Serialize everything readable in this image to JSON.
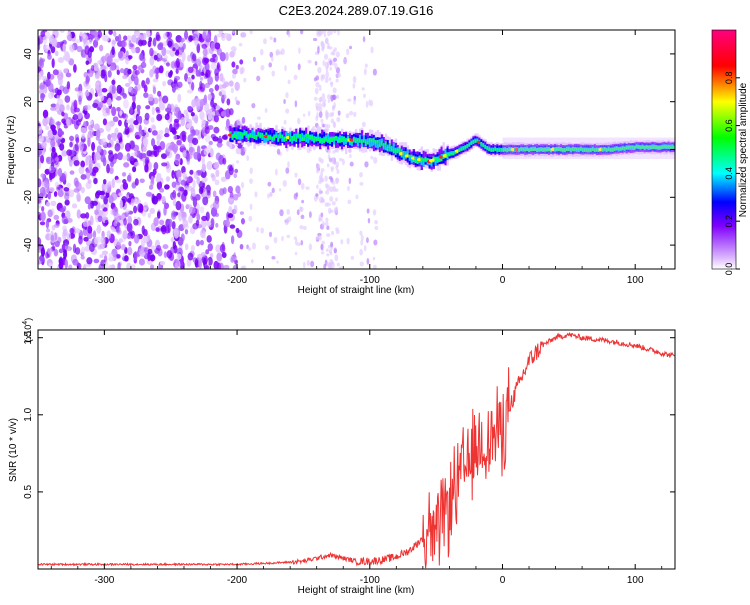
{
  "title": "C2E3.2024.289.07.19.G16",
  "chart_data": [
    {
      "type": "heatmap",
      "xlabel": "Height of straight line (km)",
      "ylabel": "Frequency (Hz)",
      "xlim": [
        -350,
        130
      ],
      "ylim": [
        -50,
        50
      ],
      "xticks": [
        -300,
        -200,
        -100,
        0,
        100
      ],
      "yticks": [
        -40,
        -20,
        0,
        20,
        40
      ],
      "colorbar": {
        "label": "Normalized spectral amplitude",
        "range": [
          0,
          1
        ],
        "ticks": [
          "0.0",
          "0.2",
          "0.4",
          "0.6",
          "0.8"
        ],
        "tick_values": [
          0,
          0.2,
          0.4,
          0.6,
          0.8
        ],
        "colors": [
          "#ffffff",
          "#d9b3ff",
          "#8000ff",
          "#0000ff",
          "#00ffff",
          "#00ff00",
          "#ffff00",
          "#ff0000",
          "#ff0080"
        ]
      },
      "frequency_track": {
        "x": [
          -205,
          -190,
          -170,
          -150,
          -130,
          -110,
          -95,
          -85,
          -75,
          -65,
          -55,
          -45,
          -35,
          -25,
          -20,
          -15,
          -10,
          -5,
          0,
          20,
          50,
          80,
          100,
          130
        ],
        "y": [
          6,
          6,
          5,
          5,
          4,
          4,
          3,
          1,
          -2,
          -4,
          -5,
          -3,
          -1,
          2,
          4,
          2,
          0,
          0,
          0,
          0,
          0,
          0,
          1,
          1
        ]
      },
      "noise_region": {
        "x_from": -350,
        "x_to": -205
      },
      "grid": false,
      "legend": "none"
    },
    {
      "type": "line",
      "xlabel": "Height of straight line (km)",
      "ylabel": "SNR (10 * v/v)",
      "y_multiplier": "(x10⁴)",
      "y_multiplier_base": "(x10",
      "y_multiplier_exp": "4",
      "xlim": [
        -350,
        130
      ],
      "ylim": [
        0,
        1.55
      ],
      "xticks": [
        -300,
        -200,
        -100,
        0,
        100
      ],
      "yticks": [
        "0.5",
        "1.0",
        "1.5"
      ],
      "ytick_values": [
        0.5,
        1.0,
        1.5
      ],
      "color": "#ee3333",
      "grid": false,
      "legend": "none",
      "series": [
        {
          "x": [
            -350,
            -300,
            -250,
            -200,
            -170,
            -150,
            -140,
            -130,
            -120,
            -110,
            -100,
            -90,
            -80,
            -70,
            -60,
            -55,
            -50,
            -45,
            -40,
            -35,
            -30,
            -25,
            -20,
            -15,
            -10,
            -5,
            0,
            5,
            10,
            15,
            20,
            30,
            40,
            50,
            60,
            80,
            100,
            120,
            130
          ],
          "y": [
            0.03,
            0.03,
            0.03,
            0.03,
            0.04,
            0.05,
            0.07,
            0.09,
            0.07,
            0.05,
            0.05,
            0.06,
            0.08,
            0.12,
            0.2,
            0.28,
            0.2,
            0.35,
            0.45,
            0.55,
            0.65,
            0.7,
            0.8,
            0.85,
            0.85,
            0.9,
            0.95,
            1.05,
            1.15,
            1.25,
            1.35,
            1.45,
            1.5,
            1.52,
            1.5,
            1.48,
            1.45,
            1.4,
            1.38
          ]
        }
      ]
    }
  ]
}
